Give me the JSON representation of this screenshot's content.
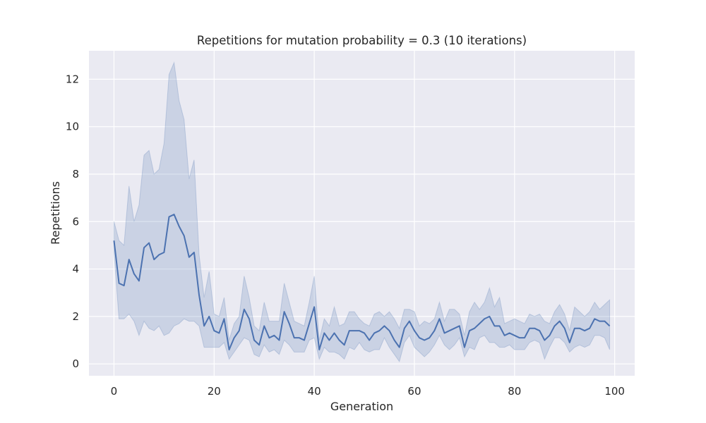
{
  "chart_data": {
    "type": "line",
    "title": "Repetitions for mutation probability = 0.3 (10 iterations)",
    "xlabel": "Generation",
    "ylabel": "Repetitions",
    "xlim": [
      -5,
      104
    ],
    "ylim": [
      -0.5,
      13.2
    ],
    "xticks": [
      0,
      20,
      40,
      60,
      80,
      100
    ],
    "yticks": [
      0,
      2,
      4,
      6,
      8,
      10,
      12
    ],
    "grid": true,
    "legend": "none",
    "colors": {
      "line": "#4c72b0",
      "band": "#4c72b0",
      "background": "#eaeaf2",
      "grid": "#ffffff"
    },
    "x": [
      0,
      1,
      2,
      3,
      4,
      5,
      6,
      7,
      8,
      9,
      10,
      11,
      12,
      13,
      14,
      15,
      16,
      17,
      18,
      19,
      20,
      21,
      22,
      23,
      24,
      25,
      26,
      27,
      28,
      29,
      30,
      31,
      32,
      33,
      34,
      35,
      36,
      37,
      38,
      39,
      40,
      41,
      42,
      43,
      44,
      45,
      46,
      47,
      48,
      49,
      50,
      51,
      52,
      53,
      54,
      55,
      56,
      57,
      58,
      59,
      60,
      61,
      62,
      63,
      64,
      65,
      66,
      67,
      68,
      69,
      70,
      71,
      72,
      73,
      74,
      75,
      76,
      77,
      78,
      79,
      80,
      81,
      82,
      83,
      84,
      85,
      86,
      87,
      88,
      89,
      90,
      91,
      92,
      93,
      94,
      95,
      96,
      97,
      98,
      99
    ],
    "series": [
      {
        "mean": [
          5.2,
          3.4,
          3.3,
          4.4,
          3.8,
          3.5,
          4.9,
          5.1,
          4.4,
          4.6,
          4.7,
          6.2,
          6.3,
          5.8,
          5.4,
          4.5,
          4.7,
          2.9,
          1.6,
          2.0,
          1.4,
          1.3,
          1.9,
          0.6,
          1.1,
          1.4,
          2.3,
          1.9,
          1.0,
          0.8,
          1.6,
          1.1,
          1.2,
          1.0,
          2.2,
          1.7,
          1.1,
          1.1,
          1.0,
          1.7,
          2.4,
          0.6,
          1.3,
          1.0,
          1.3,
          1.0,
          0.8,
          1.4,
          1.4,
          1.4,
          1.3,
          1.0,
          1.3,
          1.4,
          1.6,
          1.4,
          1.0,
          0.7,
          1.5,
          1.8,
          1.4,
          1.1,
          1.0,
          1.1,
          1.4,
          1.9,
          1.3,
          1.4,
          1.5,
          1.6,
          0.7,
          1.4,
          1.5,
          1.7,
          1.9,
          2.0,
          1.6,
          1.6,
          1.2,
          1.3,
          1.2,
          1.1,
          1.1,
          1.5,
          1.5,
          1.4,
          1.0,
          1.2,
          1.6,
          1.8,
          1.5,
          0.9,
          1.5,
          1.5,
          1.4,
          1.5,
          1.9,
          1.8,
          1.8,
          1.6
        ],
        "lower": [
          4.7,
          1.9,
          1.9,
          2.1,
          1.8,
          1.2,
          1.8,
          1.5,
          1.4,
          1.6,
          1.2,
          1.3,
          1.6,
          1.7,
          1.9,
          1.8,
          1.8,
          1.6,
          0.7,
          0.7,
          0.7,
          0.7,
          0.9,
          0.2,
          0.5,
          0.8,
          1.1,
          1.0,
          0.4,
          0.3,
          0.8,
          0.5,
          0.6,
          0.4,
          1.0,
          0.8,
          0.5,
          0.5,
          0.5,
          1.0,
          1.1,
          0.2,
          0.7,
          0.5,
          0.5,
          0.4,
          0.2,
          0.7,
          0.6,
          0.9,
          0.6,
          0.5,
          0.6,
          0.6,
          1.1,
          0.7,
          0.4,
          0.1,
          0.9,
          1.2,
          0.7,
          0.5,
          0.3,
          0.5,
          0.8,
          1.2,
          0.8,
          0.6,
          0.8,
          1.1,
          0.3,
          0.7,
          0.6,
          1.1,
          1.2,
          0.9,
          0.9,
          0.7,
          0.7,
          0.8,
          0.6,
          0.6,
          0.6,
          0.9,
          1.0,
          0.9,
          0.2,
          0.7,
          1.1,
          1.1,
          0.9,
          0.5,
          0.7,
          0.8,
          0.7,
          0.8,
          1.2,
          1.2,
          1.1,
          0.6
        ],
        "upper": [
          6.0,
          5.2,
          5.0,
          7.5,
          6.0,
          6.7,
          8.8,
          9.0,
          8.0,
          8.2,
          9.3,
          12.2,
          12.7,
          11.1,
          10.3,
          7.8,
          8.6,
          4.6,
          2.8,
          3.9,
          2.1,
          2.0,
          2.8,
          1.0,
          1.7,
          2.0,
          3.7,
          2.8,
          1.6,
          1.4,
          2.6,
          1.8,
          1.8,
          1.8,
          3.4,
          2.6,
          1.8,
          1.7,
          1.6,
          2.6,
          3.7,
          1.0,
          1.9,
          1.6,
          2.4,
          1.6,
          1.7,
          2.2,
          2.2,
          1.9,
          1.7,
          1.6,
          2.1,
          2.2,
          2.0,
          2.2,
          1.9,
          1.5,
          2.3,
          2.3,
          2.2,
          1.6,
          1.8,
          1.7,
          1.9,
          2.6,
          1.8,
          2.3,
          2.3,
          2.1,
          1.2,
          2.2,
          2.6,
          2.3,
          2.6,
          3.2,
          2.4,
          2.8,
          1.7,
          1.8,
          1.9,
          1.8,
          1.7,
          2.1,
          2.0,
          2.1,
          1.8,
          1.7,
          2.2,
          2.5,
          2.1,
          1.4,
          2.4,
          2.2,
          2.0,
          2.2,
          2.6,
          2.3,
          2.5,
          2.7
        ]
      }
    ]
  }
}
